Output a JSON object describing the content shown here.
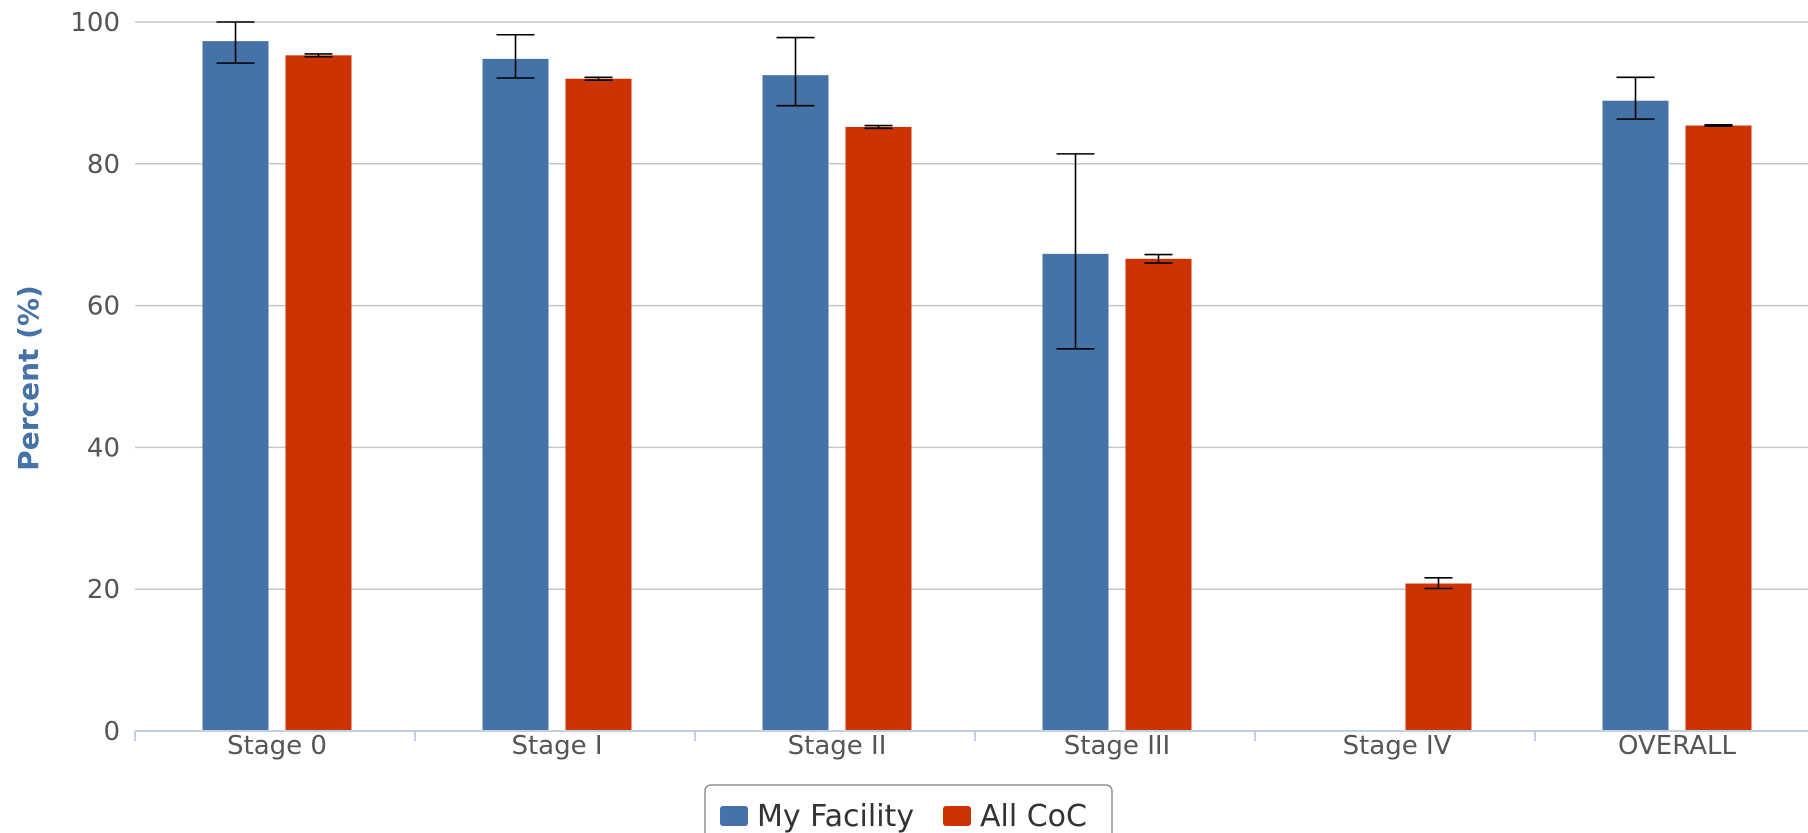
{
  "chart_data": {
    "type": "bar",
    "categories": [
      "Stage 0",
      "Stage I",
      "Stage II",
      "Stage III",
      "Stage IV",
      "OVERALL"
    ],
    "ylabel": "Percent (%)",
    "xlabel": "",
    "ylim": [
      0,
      100
    ],
    "yticks": [
      "0",
      "20",
      "40",
      "60",
      "80",
      "100"
    ],
    "grid": true,
    "legend_position": "bottom-center",
    "series": [
      {
        "name": "My Facility",
        "color": "#4572a7",
        "values": [
          97.3,
          94.8,
          92.5,
          67.3,
          null,
          88.9
        ],
        "error_low": [
          94.2,
          92.1,
          88.2,
          53.9,
          null,
          86.3
        ],
        "error_high": [
          100,
          98.2,
          97.8,
          81.4,
          null,
          92.2
        ]
      },
      {
        "name": "All CoC",
        "color": "#cc3300",
        "values": [
          95.3,
          92.0,
          85.2,
          66.6,
          20.8,
          85.4
        ],
        "error_low": [
          95.1,
          91.8,
          85.0,
          66.0,
          20.1,
          85.3
        ],
        "error_high": [
          95.5,
          92.2,
          85.4,
          67.2,
          21.6,
          85.5
        ]
      }
    ]
  }
}
